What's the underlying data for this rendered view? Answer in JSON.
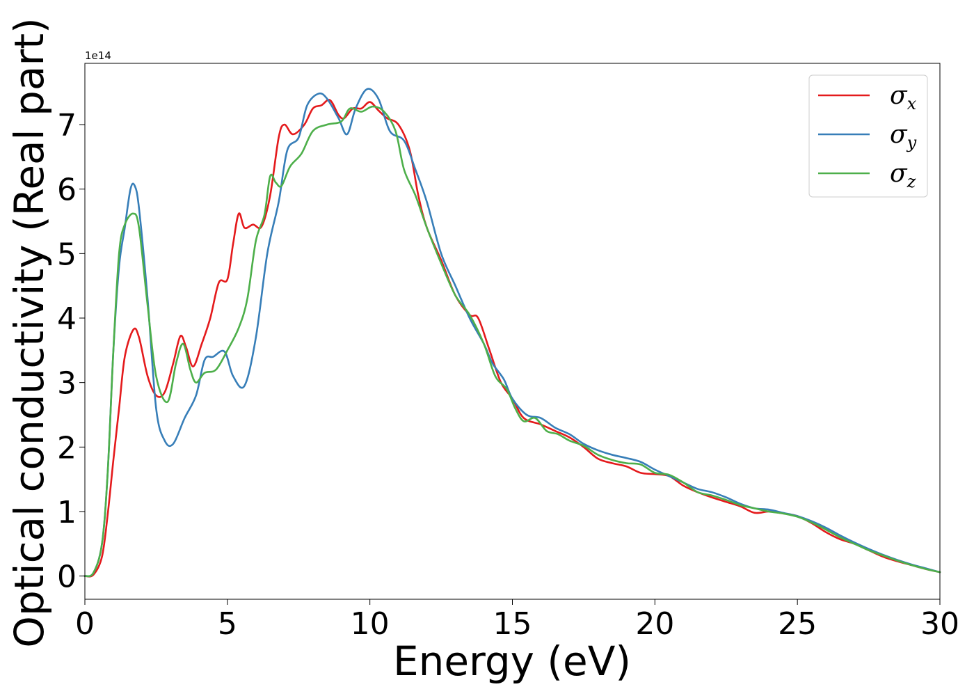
{
  "chart_data": {
    "type": "line",
    "xlabel": "Energy (eV)",
    "ylabel": "Optical conductivity (Real part)",
    "y_offset_label": "1e14",
    "xlim": [
      0,
      30
    ],
    "ylim": [
      -0.36,
      7.95
    ],
    "x_ticks": [
      0,
      5,
      10,
      15,
      20,
      25,
      30
    ],
    "y_ticks": [
      0,
      1,
      2,
      3,
      4,
      5,
      6,
      7
    ],
    "grid": false,
    "legend_position": "top-right",
    "series": [
      {
        "name": "σx",
        "legend_symbol": "σ",
        "legend_subscript": "x",
        "color": "#e41a1c",
        "points": [
          [
            0,
            0
          ],
          [
            0.3,
            0.02
          ],
          [
            0.6,
            0.3
          ],
          [
            0.8,
            0.95
          ],
          [
            1.0,
            1.8
          ],
          [
            1.2,
            2.6
          ],
          [
            1.4,
            3.4
          ],
          [
            1.7,
            3.82
          ],
          [
            1.9,
            3.7
          ],
          [
            2.2,
            3.1
          ],
          [
            2.5,
            2.8
          ],
          [
            2.8,
            2.85
          ],
          [
            3.1,
            3.3
          ],
          [
            3.35,
            3.72
          ],
          [
            3.55,
            3.55
          ],
          [
            3.8,
            3.25
          ],
          [
            4.1,
            3.6
          ],
          [
            4.4,
            4.0
          ],
          [
            4.7,
            4.55
          ],
          [
            5.0,
            4.6
          ],
          [
            5.2,
            5.15
          ],
          [
            5.4,
            5.62
          ],
          [
            5.6,
            5.4
          ],
          [
            5.9,
            5.45
          ],
          [
            6.2,
            5.42
          ],
          [
            6.5,
            5.9
          ],
          [
            6.8,
            6.8
          ],
          [
            7.0,
            7.0
          ],
          [
            7.3,
            6.85
          ],
          [
            7.7,
            7.0
          ],
          [
            8.0,
            7.25
          ],
          [
            8.3,
            7.3
          ],
          [
            8.6,
            7.38
          ],
          [
            8.9,
            7.15
          ],
          [
            9.1,
            7.1
          ],
          [
            9.4,
            7.25
          ],
          [
            9.7,
            7.25
          ],
          [
            10.0,
            7.35
          ],
          [
            10.3,
            7.22
          ],
          [
            10.6,
            7.1
          ],
          [
            11.0,
            7.0
          ],
          [
            11.4,
            6.6
          ],
          [
            11.7,
            5.9
          ],
          [
            12.0,
            5.4
          ],
          [
            12.5,
            4.9
          ],
          [
            13.0,
            4.35
          ],
          [
            13.5,
            4.05
          ],
          [
            13.8,
            4.0
          ],
          [
            14.2,
            3.5
          ],
          [
            14.6,
            3.0
          ],
          [
            15.0,
            2.75
          ],
          [
            15.4,
            2.45
          ],
          [
            16.0,
            2.35
          ],
          [
            16.5,
            2.25
          ],
          [
            17.0,
            2.15
          ],
          [
            17.5,
            2.0
          ],
          [
            18.0,
            1.82
          ],
          [
            18.5,
            1.75
          ],
          [
            19.0,
            1.7
          ],
          [
            19.5,
            1.6
          ],
          [
            20.0,
            1.58
          ],
          [
            20.5,
            1.55
          ],
          [
            21.0,
            1.4
          ],
          [
            21.5,
            1.3
          ],
          [
            22.0,
            1.22
          ],
          [
            22.5,
            1.15
          ],
          [
            23.0,
            1.08
          ],
          [
            23.5,
            0.98
          ],
          [
            24.0,
            1.0
          ],
          [
            24.5,
            0.97
          ],
          [
            25.0,
            0.93
          ],
          [
            25.5,
            0.82
          ],
          [
            26.0,
            0.68
          ],
          [
            26.5,
            0.57
          ],
          [
            27.0,
            0.5
          ],
          [
            27.5,
            0.4
          ],
          [
            28.0,
            0.3
          ],
          [
            28.5,
            0.23
          ],
          [
            29.0,
            0.17
          ],
          [
            29.5,
            0.11
          ],
          [
            30.0,
            0.06
          ]
        ]
      },
      {
        "name": "σy",
        "legend_symbol": "σ",
        "legend_subscript": "y",
        "color": "#377eb8",
        "points": [
          [
            0,
            0
          ],
          [
            0.3,
            0.05
          ],
          [
            0.6,
            0.5
          ],
          [
            0.8,
            1.6
          ],
          [
            1.0,
            3.5
          ],
          [
            1.2,
            4.8
          ],
          [
            1.4,
            5.4
          ],
          [
            1.6,
            6.0
          ],
          [
            1.75,
            6.05
          ],
          [
            1.9,
            5.7
          ],
          [
            2.2,
            4.3
          ],
          [
            2.5,
            2.6
          ],
          [
            2.8,
            2.1
          ],
          [
            3.1,
            2.05
          ],
          [
            3.5,
            2.45
          ],
          [
            3.9,
            2.8
          ],
          [
            4.2,
            3.35
          ],
          [
            4.5,
            3.4
          ],
          [
            4.9,
            3.48
          ],
          [
            5.2,
            3.1
          ],
          [
            5.6,
            2.95
          ],
          [
            6.0,
            3.7
          ],
          [
            6.4,
            5.0
          ],
          [
            6.8,
            5.8
          ],
          [
            7.1,
            6.6
          ],
          [
            7.5,
            6.8
          ],
          [
            7.8,
            7.3
          ],
          [
            8.2,
            7.48
          ],
          [
            8.5,
            7.4
          ],
          [
            8.9,
            7.1
          ],
          [
            9.2,
            6.85
          ],
          [
            9.5,
            7.25
          ],
          [
            9.9,
            7.55
          ],
          [
            10.3,
            7.4
          ],
          [
            10.7,
            6.9
          ],
          [
            11.2,
            6.75
          ],
          [
            11.6,
            6.3
          ],
          [
            12.0,
            5.8
          ],
          [
            12.5,
            5.0
          ],
          [
            13.0,
            4.5
          ],
          [
            13.5,
            4.0
          ],
          [
            14.0,
            3.6
          ],
          [
            14.3,
            3.3
          ],
          [
            14.7,
            3.05
          ],
          [
            15.0,
            2.75
          ],
          [
            15.5,
            2.5
          ],
          [
            16.0,
            2.45
          ],
          [
            16.5,
            2.3
          ],
          [
            17.0,
            2.2
          ],
          [
            17.5,
            2.05
          ],
          [
            18.0,
            1.95
          ],
          [
            18.5,
            1.88
          ],
          [
            19.0,
            1.83
          ],
          [
            19.5,
            1.77
          ],
          [
            20.0,
            1.65
          ],
          [
            20.5,
            1.55
          ],
          [
            21.0,
            1.45
          ],
          [
            21.5,
            1.35
          ],
          [
            22.0,
            1.3
          ],
          [
            22.5,
            1.22
          ],
          [
            23.0,
            1.12
          ],
          [
            23.5,
            1.05
          ],
          [
            24.0,
            1.03
          ],
          [
            24.5,
            0.98
          ],
          [
            25.0,
            0.93
          ],
          [
            25.5,
            0.85
          ],
          [
            26.0,
            0.75
          ],
          [
            26.5,
            0.63
          ],
          [
            27.0,
            0.52
          ],
          [
            27.5,
            0.42
          ],
          [
            28.0,
            0.33
          ],
          [
            28.5,
            0.25
          ],
          [
            29.0,
            0.18
          ],
          [
            29.5,
            0.12
          ],
          [
            30.0,
            0.06
          ]
        ]
      },
      {
        "name": "σz",
        "legend_symbol": "σ",
        "legend_subscript": "z",
        "color": "#4daf4a",
        "points": [
          [
            0,
            0
          ],
          [
            0.3,
            0.05
          ],
          [
            0.6,
            0.5
          ],
          [
            0.8,
            1.6
          ],
          [
            1.0,
            3.5
          ],
          [
            1.2,
            5.0
          ],
          [
            1.4,
            5.45
          ],
          [
            1.7,
            5.62
          ],
          [
            1.9,
            5.4
          ],
          [
            2.2,
            4.2
          ],
          [
            2.5,
            3.1
          ],
          [
            2.9,
            2.7
          ],
          [
            3.2,
            3.3
          ],
          [
            3.45,
            3.6
          ],
          [
            3.7,
            3.2
          ],
          [
            3.9,
            3.0
          ],
          [
            4.2,
            3.15
          ],
          [
            4.6,
            3.2
          ],
          [
            5.0,
            3.5
          ],
          [
            5.4,
            3.85
          ],
          [
            5.7,
            4.3
          ],
          [
            6.0,
            5.2
          ],
          [
            6.3,
            5.6
          ],
          [
            6.5,
            6.2
          ],
          [
            6.7,
            6.1
          ],
          [
            6.9,
            6.05
          ],
          [
            7.2,
            6.35
          ],
          [
            7.6,
            6.55
          ],
          [
            8.0,
            6.9
          ],
          [
            8.5,
            7.0
          ],
          [
            9.0,
            7.05
          ],
          [
            9.3,
            7.25
          ],
          [
            9.7,
            7.2
          ],
          [
            10.1,
            7.28
          ],
          [
            10.5,
            7.2
          ],
          [
            10.9,
            6.9
          ],
          [
            11.2,
            6.3
          ],
          [
            11.6,
            5.9
          ],
          [
            12.0,
            5.4
          ],
          [
            12.5,
            4.85
          ],
          [
            13.0,
            4.35
          ],
          [
            13.5,
            4.05
          ],
          [
            14.0,
            3.6
          ],
          [
            14.4,
            3.1
          ],
          [
            14.8,
            2.9
          ],
          [
            15.1,
            2.6
          ],
          [
            15.4,
            2.4
          ],
          [
            15.8,
            2.45
          ],
          [
            16.2,
            2.25
          ],
          [
            16.6,
            2.2
          ],
          [
            17.0,
            2.1
          ],
          [
            17.5,
            2.02
          ],
          [
            18.0,
            1.88
          ],
          [
            18.5,
            1.8
          ],
          [
            19.0,
            1.75
          ],
          [
            19.5,
            1.73
          ],
          [
            20.0,
            1.6
          ],
          [
            20.5,
            1.57
          ],
          [
            21.0,
            1.45
          ],
          [
            21.5,
            1.3
          ],
          [
            22.0,
            1.25
          ],
          [
            22.5,
            1.18
          ],
          [
            23.0,
            1.1
          ],
          [
            23.5,
            1.05
          ],
          [
            24.0,
            1.0
          ],
          [
            24.5,
            0.97
          ],
          [
            25.0,
            0.92
          ],
          [
            25.5,
            0.83
          ],
          [
            26.0,
            0.72
          ],
          [
            26.5,
            0.6
          ],
          [
            27.0,
            0.5
          ],
          [
            27.5,
            0.4
          ],
          [
            28.0,
            0.32
          ],
          [
            28.5,
            0.24
          ],
          [
            29.0,
            0.17
          ],
          [
            29.5,
            0.11
          ],
          [
            30.0,
            0.06
          ]
        ]
      }
    ]
  }
}
